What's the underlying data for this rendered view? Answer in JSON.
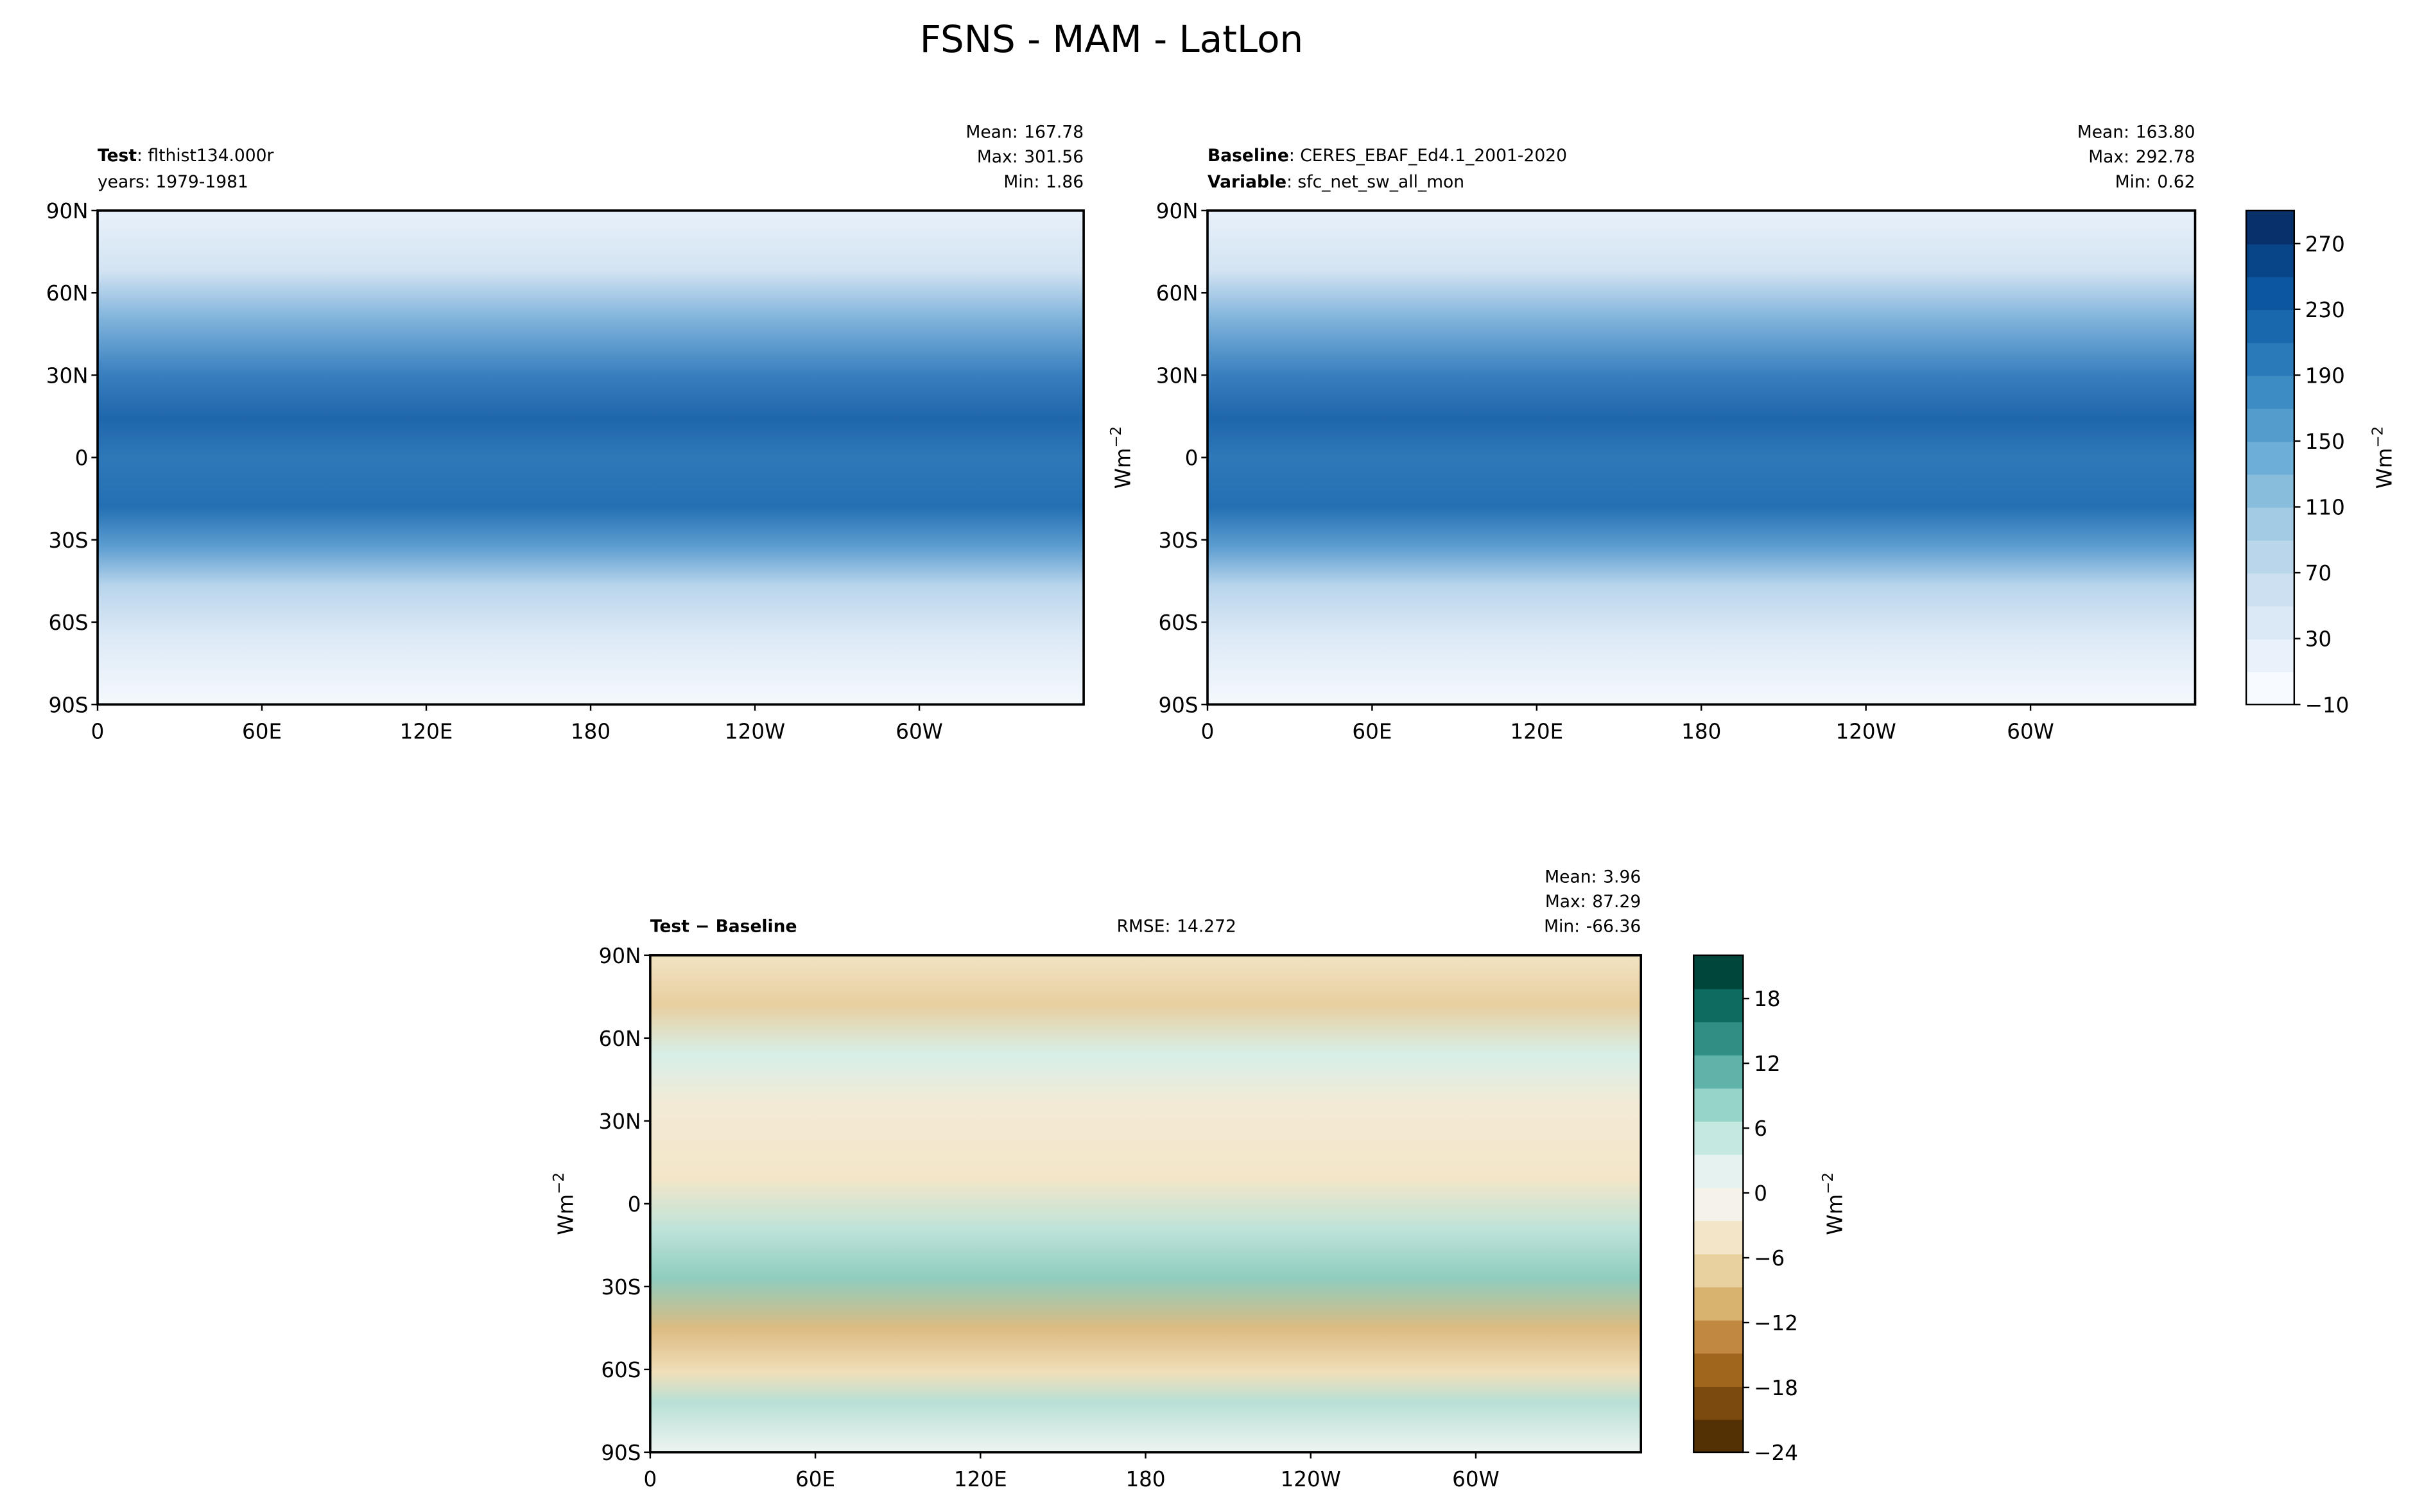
{
  "title": "FSNS - MAM - LatLon",
  "chart_data": [
    {
      "type": "contour-map",
      "left_lines": [
        {
          "bold": "Test",
          "text": ": flthist134.000r"
        },
        {
          "text": "years: 1979-1981"
        }
      ],
      "stats": [
        {
          "label": "Mean:",
          "value": 167.78
        },
        {
          "label": "Max:",
          "value": 301.56
        },
        {
          "label": "Min:",
          "value": 1.86
        }
      ],
      "xlim": [
        0,
        360
      ],
      "ylim": [
        -90,
        90
      ],
      "xticks": [
        0,
        {
          "value": 60,
          "label": "60E"
        },
        {
          "value": 120,
          "label": "120E"
        },
        180,
        {
          "value": 240,
          "label": "120W"
        },
        {
          "value": 300,
          "label": "60W"
        }
      ],
      "yticks": [
        {
          "value": 90,
          "label": "90N"
        },
        {
          "value": 60,
          "label": "60N"
        },
        {
          "value": 30,
          "label": "30N"
        },
        0,
        {
          "value": -30,
          "label": "30S"
        },
        {
          "value": -60,
          "label": "60S"
        },
        {
          "value": -90,
          "label": "90S"
        }
      ]
    },
    {
      "type": "contour-map",
      "left_lines": [
        {
          "bold": "Baseline",
          "text": ": CERES_EBAF_Ed4.1_2001-2020"
        },
        {
          "bold": "Variable",
          "text": ": sfc_net_sw_all_mon"
        }
      ],
      "stats": [
        {
          "label": "Mean:",
          "value": 163.8,
          "value_label": "163.80"
        },
        {
          "label": "Max:",
          "value": 292.78
        },
        {
          "label": "Min:",
          "value": 0.62
        }
      ],
      "ylabel": {
        "base": "Wm",
        "sup": "−2"
      },
      "xlim": [
        0,
        360
      ],
      "ylim": [
        -90,
        90
      ],
      "xticks": [
        0,
        {
          "value": 60,
          "label": "60E"
        },
        {
          "value": 120,
          "label": "120E"
        },
        180,
        {
          "value": 240,
          "label": "120W"
        },
        {
          "value": 300,
          "label": "60W"
        }
      ],
      "yticks": [
        {
          "value": 90,
          "label": "90N"
        },
        {
          "value": 60,
          "label": "60N"
        },
        {
          "value": 30,
          "label": "30N"
        },
        0,
        {
          "value": -30,
          "label": "30S"
        },
        {
          "value": -60,
          "label": "60S"
        },
        {
          "value": -90,
          "label": "90S"
        }
      ],
      "colorbar": {
        "lim": [
          -10,
          290
        ],
        "ticks": [
          {
            "value": -10,
            "label": "−10"
          },
          30,
          70,
          110,
          150,
          190,
          230,
          270
        ],
        "colors": [
          "#f7fbff",
          "#e9f2fa",
          "#dbe9f6",
          "#cde0f1",
          "#bad6eb",
          "#a3cbe3",
          "#88bddc",
          "#6caed6",
          "#529dcc",
          "#3d8dc4",
          "#2a7ab9",
          "#1967ad",
          "#0c56a0",
          "#084488",
          "#08306b"
        ],
        "label": {
          "base": "Wm",
          "sup": "−2"
        }
      }
    },
    {
      "type": "contour-map",
      "left_lines": [
        {
          "bold": "Test − Baseline"
        }
      ],
      "center_stat": {
        "label": "RMSE:",
        "value": 14.272
      },
      "stats": [
        {
          "label": "Mean:",
          "value": 3.96
        },
        {
          "label": "Max:",
          "value": 87.29
        },
        {
          "label": "Min:",
          "value": -66.36
        }
      ],
      "ylabel": {
        "base": "Wm",
        "sup": "−2"
      },
      "xlim": [
        0,
        360
      ],
      "ylim": [
        -90,
        90
      ],
      "xticks": [
        0,
        {
          "value": 60,
          "label": "60E"
        },
        {
          "value": 120,
          "label": "120E"
        },
        180,
        {
          "value": 240,
          "label": "120W"
        },
        {
          "value": 300,
          "label": "60W"
        }
      ],
      "yticks": [
        {
          "value": 90,
          "label": "90N"
        },
        {
          "value": 60,
          "label": "60N"
        },
        {
          "value": 30,
          "label": "30N"
        },
        0,
        {
          "value": -30,
          "label": "30S"
        },
        {
          "value": -60,
          "label": "60S"
        },
        {
          "value": -90,
          "label": "90S"
        }
      ],
      "colorbar": {
        "lim": [
          -24,
          22
        ],
        "ticks": [
          {
            "value": -24,
            "label": "−24"
          },
          {
            "value": -18,
            "label": "−18"
          },
          {
            "value": -12,
            "label": "−12"
          },
          {
            "value": -6,
            "label": "−6"
          },
          0,
          6,
          12,
          18
        ],
        "colors": [
          "#543005",
          "#7b4a0e",
          "#a0661d",
          "#c08840",
          "#d8b370",
          "#e8d19f",
          "#f3e6c8",
          "#f5f2ea",
          "#e5f2ef",
          "#c5e8e0",
          "#96d4c7",
          "#5fb3a8",
          "#318e85",
          "#0e6b60",
          "#01463b"
        ],
        "label": {
          "base": "Wm",
          "sup": "−2"
        }
      }
    }
  ]
}
